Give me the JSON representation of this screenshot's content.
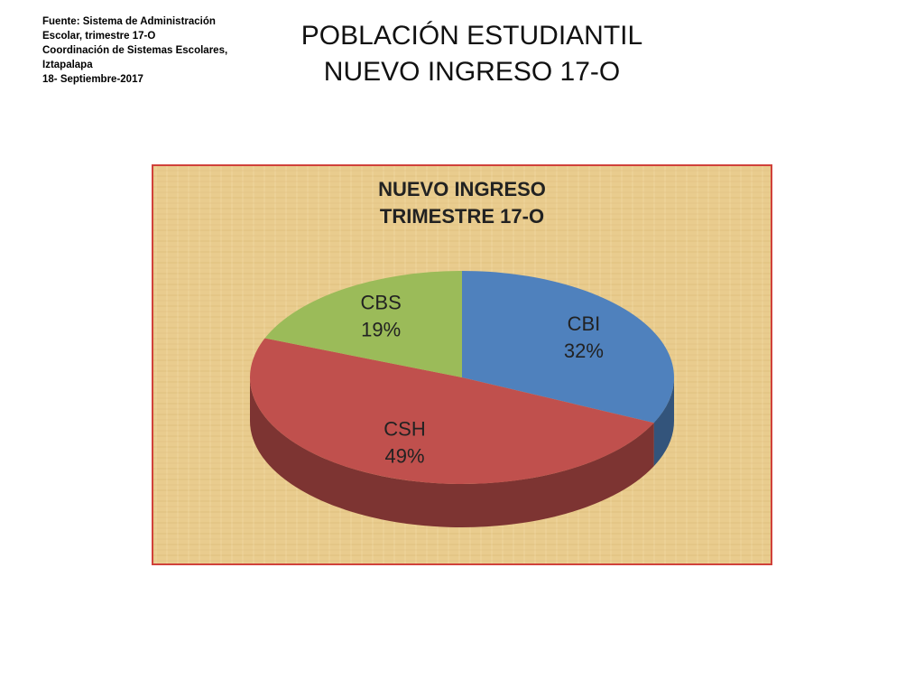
{
  "source": [
    "Fuente: Sistema de Administración",
    "Escolar, trimestre 17-O",
    "Coordinación de Sistemas Escolares,",
    "Iztapalapa",
    "18- Septiembre-2017"
  ],
  "title": [
    "POBLACIÓN ESTUDIANTIL",
    "NUEVO INGRESO 17-O"
  ],
  "chart_data": {
    "type": "pie",
    "title": [
      "NUEVO INGRESO",
      "TRIMESTRE 17-O"
    ],
    "categories": [
      "CBI",
      "CSH",
      "CBS"
    ],
    "values": [
      32,
      49,
      19
    ],
    "value_labels": [
      "32%",
      "49%",
      "19%"
    ],
    "colors": [
      "#4f81bd",
      "#c0504d",
      "#9bbb59"
    ]
  }
}
